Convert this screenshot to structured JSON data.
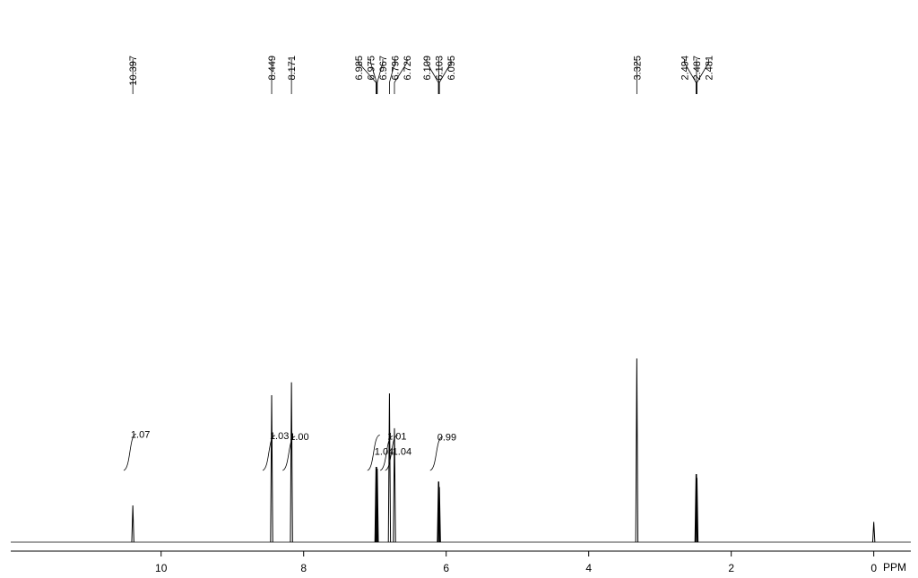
{
  "chart_data": {
    "type": "nmr",
    "x_label": "PPM",
    "xlim": [
      12.11,
      -0.52
    ],
    "xticks": [
      10,
      8,
      6,
      4,
      2,
      0
    ],
    "ylim": [
      0,
      100
    ],
    "peaks": {
      "x": [
        10.397,
        8.449,
        8.171,
        6.985,
        6.975,
        6.967,
        6.796,
        6.726,
        6.109,
        6.103,
        6.095,
        3.325,
        2.494,
        2.487,
        2.481
      ],
      "values": [
        20,
        80,
        87,
        41,
        41,
        40,
        81,
        62,
        33,
        33,
        30,
        100,
        37,
        37,
        35
      ]
    },
    "reference_peak": {
      "x": 0,
      "value": 11
    },
    "integrals": {
      "x": [
        10.4,
        8.45,
        8.17,
        6.98,
        6.8,
        6.73,
        6.1
      ],
      "values": [
        1.07,
        1.03,
        1,
        1.04,
        1.01,
        1.04,
        0.99
      ],
      "value_labels": [
        "1.07",
        "1.03",
        "1.00",
        "1.04",
        "1.01",
        "1.04",
        "0.99"
      ]
    },
    "color": "#000000"
  }
}
